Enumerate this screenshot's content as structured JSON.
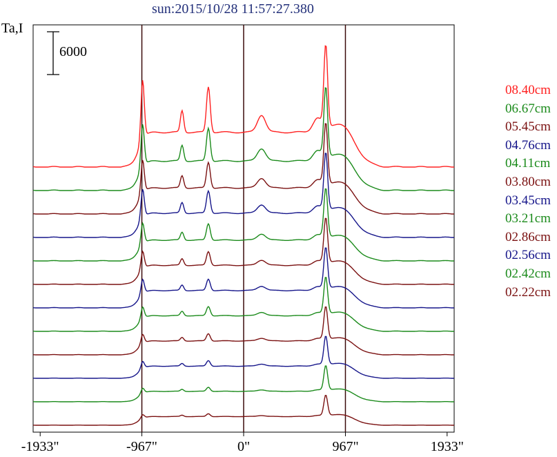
{
  "chart_data": {
    "type": "line",
    "title": "sun:2015/10/28 11:57:27.380",
    "ylabel": "Ta,I",
    "scale_bar": {
      "value": 6000,
      "label": "6000"
    },
    "xlim": [
      -2000,
      2000
    ],
    "x_ticks": [
      {
        "value": -1933,
        "label": "-1933\""
      },
      {
        "value": -967,
        "label": "-967\""
      },
      {
        "value": 0,
        "label": "0\""
      },
      {
        "value": 967,
        "label": "967\""
      },
      {
        "value": 1933,
        "label": "1933\""
      }
    ],
    "vertical_lines": [
      -967,
      0,
      967
    ],
    "grid": false,
    "legend_position": "right",
    "series": [
      {
        "name": "08.40cm",
        "color": "#ff2020",
        "offset": 11,
        "amp": 1.0
      },
      {
        "name": "06.67cm",
        "color": "#1a8a1a",
        "offset": 10,
        "amp": 0.85
      },
      {
        "name": "05.45cm",
        "color": "#7a1010",
        "offset": 9,
        "amp": 0.75
      },
      {
        "name": "04.76cm",
        "color": "#15158a",
        "offset": 8,
        "amp": 0.7
      },
      {
        "name": "04.11cm",
        "color": "#1a8a1a",
        "offset": 7,
        "amp": 0.6
      },
      {
        "name": "03.80cm",
        "color": "#7a1010",
        "offset": 6,
        "amp": 0.55
      },
      {
        "name": "03.45cm",
        "color": "#15158a",
        "offset": 5,
        "amp": 0.5
      },
      {
        "name": "03.21cm",
        "color": "#1a8a1a",
        "offset": 4,
        "amp": 0.45
      },
      {
        "name": "02.86cm",
        "color": "#7a1010",
        "offset": 3,
        "amp": 0.4
      },
      {
        "name": "02.56cm",
        "color": "#15158a",
        "offset": 2,
        "amp": 0.35
      },
      {
        "name": "02.42cm",
        "color": "#1a8a1a",
        "offset": 1,
        "amp": 0.3
      },
      {
        "name": "02.22cm",
        "color": "#7a1010",
        "offset": 0,
        "amp": 0.25
      }
    ]
  }
}
